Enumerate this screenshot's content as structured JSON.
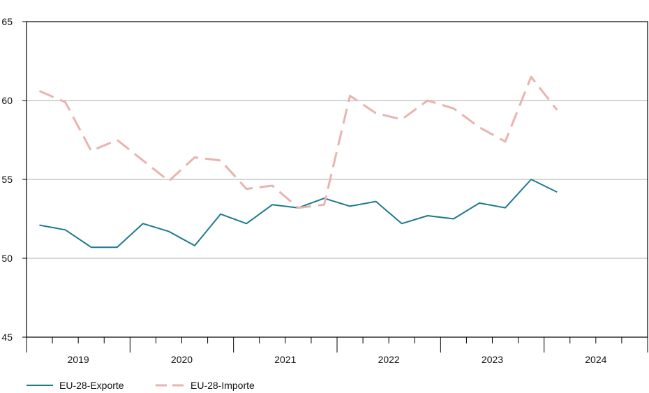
{
  "chart_data": {
    "type": "line",
    "title": "",
    "xlabel": "",
    "ylabel": "",
    "ylim": [
      45,
      65
    ],
    "yticks": [
      45,
      50,
      55,
      60,
      65
    ],
    "year_labels": [
      "2019",
      "2020",
      "2021",
      "2022",
      "2023",
      "2024"
    ],
    "quarters_per_year": 4,
    "grid": true,
    "legend_position": "bottom-left",
    "series": [
      {
        "name": "EU-28-Exporte",
        "color": "#1b7a8c",
        "style": "solid",
        "values": [
          52.1,
          51.8,
          50.7,
          50.7,
          52.2,
          51.7,
          50.8,
          52.8,
          52.2,
          53.4,
          53.2,
          53.8,
          53.3,
          53.6,
          52.2,
          52.7,
          52.5,
          53.5,
          53.2,
          55.0,
          54.2
        ]
      },
      {
        "name": "EU-28-Importe",
        "color": "#e8b4b0",
        "style": "dashed",
        "values": [
          60.6,
          59.9,
          56.8,
          57.5,
          56.2,
          54.9,
          56.4,
          56.2,
          54.4,
          54.6,
          53.2,
          53.4,
          60.3,
          59.2,
          58.8,
          60.0,
          59.5,
          58.3,
          57.4,
          61.5,
          59.4
        ]
      }
    ]
  }
}
